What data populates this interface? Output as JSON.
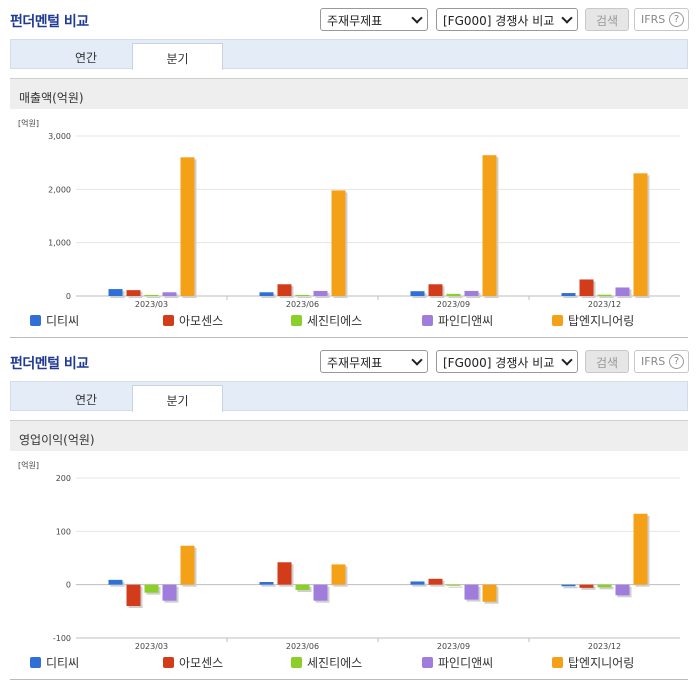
{
  "colors": {
    "series": [
      "#2f6fd6",
      "#d23c1a",
      "#8ccf2b",
      "#a07ddd",
      "#f4a118"
    ],
    "title": "#1f3a93"
  },
  "panels": [
    {
      "header": {
        "title": "펀더멘털 비교",
        "select_statement": "주재무제표",
        "select_compare": "[FG000] 경쟁사 비교",
        "search_label": "검색",
        "ifrs_label": "IFRS",
        "help_icon": "question-circle-icon"
      },
      "tabs": [
        {
          "label": "연간"
        },
        {
          "label": "분기"
        }
      ],
      "active_tab": "분기",
      "chart_title": "매출액(억원)"
    },
    {
      "header": {
        "title": "펀더멘털 비교",
        "select_statement": "주재무제표",
        "select_compare": "[FG000] 경쟁사 비교",
        "search_label": "검색",
        "ifrs_label": "IFRS",
        "help_icon": "question-circle-icon"
      },
      "tabs": [
        {
          "label": "연간"
        },
        {
          "label": "분기"
        }
      ],
      "active_tab": "분기",
      "chart_title": "영업이익(억원)"
    }
  ],
  "chart_data": [
    {
      "type": "bar",
      "unit": "[억원]",
      "categories": [
        "2023/03",
        "2023/06",
        "2023/09",
        "2023/12"
      ],
      "ylim": [
        0,
        3000
      ],
      "yticks": [
        0,
        1000,
        2000,
        3000
      ],
      "ytick_labels": [
        "0",
        "1,000",
        "2,000",
        "3,000"
      ],
      "legend_position": "bottom",
      "grid": true,
      "series": [
        {
          "name": "디티씨",
          "values": [
            130,
            70,
            90,
            55
          ]
        },
        {
          "name": "아모센스",
          "values": [
            110,
            220,
            220,
            310
          ]
        },
        {
          "name": "세진티에스",
          "values": [
            20,
            20,
            40,
            25
          ]
        },
        {
          "name": "파인디앤씨",
          "values": [
            70,
            95,
            95,
            160
          ]
        },
        {
          "name": "탑엔지니어링",
          "values": [
            2600,
            1980,
            2640,
            2300
          ]
        }
      ]
    },
    {
      "type": "bar",
      "unit": "[억원]",
      "categories": [
        "2023/03",
        "2023/06",
        "2023/09",
        "2023/12"
      ],
      "ylim": [
        -100,
        200
      ],
      "yticks": [
        -100,
        0,
        100,
        200
      ],
      "ytick_labels": [
        "-100",
        "0",
        "100",
        "200"
      ],
      "legend_position": "bottom",
      "grid": true,
      "series": [
        {
          "name": "디티씨",
          "values": [
            9,
            5,
            6,
            -3
          ]
        },
        {
          "name": "아모센스",
          "values": [
            -40,
            42,
            11,
            -6
          ]
        },
        {
          "name": "세진티에스",
          "values": [
            -15,
            -10,
            -2,
            -5
          ]
        },
        {
          "name": "파인디앤씨",
          "values": [
            -30,
            -30,
            -28,
            -20
          ]
        },
        {
          "name": "탑엔지니어링",
          "values": [
            73,
            38,
            -32,
            133
          ]
        }
      ]
    }
  ]
}
